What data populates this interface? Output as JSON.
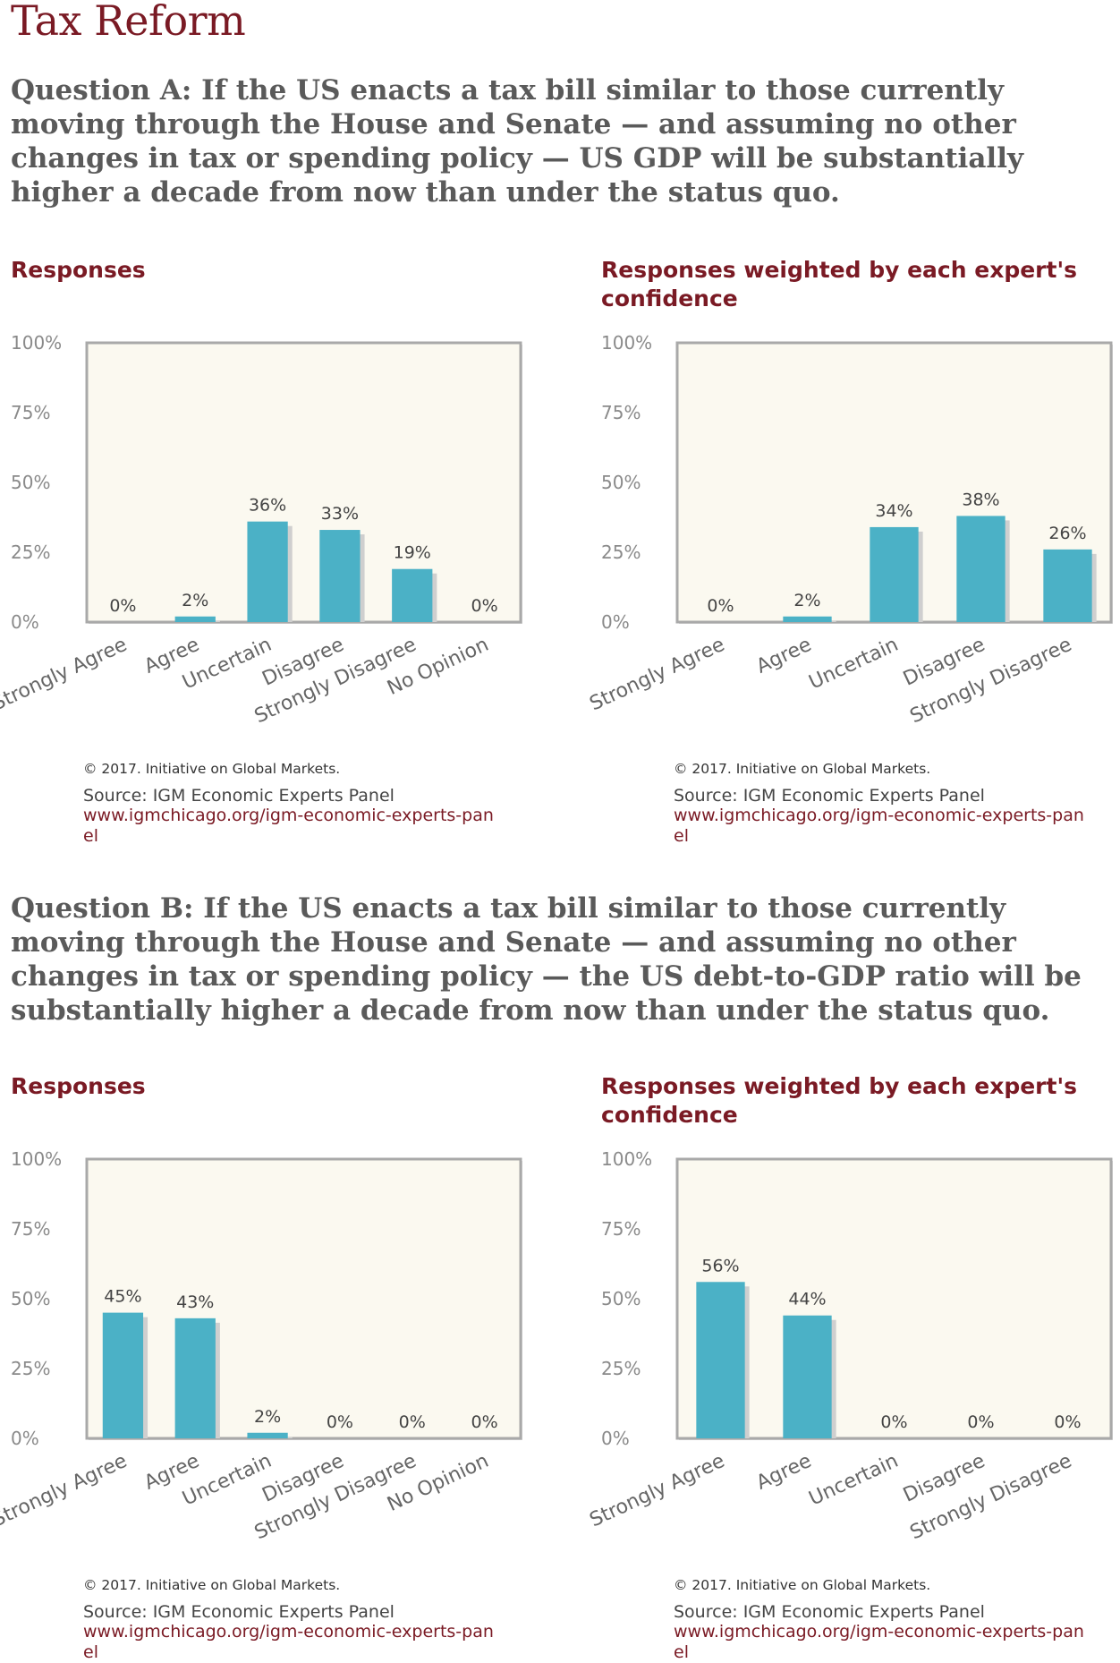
{
  "page": {
    "title": "Tax Reform"
  },
  "questions": [
    {
      "text": "Question A: If the US enacts a tax bill similar to those currently moving through the House and Senate — and assuming no other changes in tax or spending policy — US GDP will be substantially higher a decade from now than under the status quo."
    },
    {
      "text": "Question B: If the US enacts a tax bill similar to those currently moving through the House and Senate — and assuming no other changes in tax or spending policy — the US debt-to-GDP ratio will be substantially higher a decade from now than under the status quo."
    }
  ],
  "footer": {
    "copyright": "© 2017. Initiative on Global Markets.",
    "source": "Source: IGM Economic Experts Panel",
    "url": "www.igmchicago.org/igm-economic-experts-panel"
  },
  "colors": {
    "bar": "#4bb1c6",
    "plot_bg": "#fbf9f0",
    "frame": "#a9a9a9",
    "accent": "#7a1a24"
  },
  "chart_data": [
    {
      "type": "bar",
      "title": "Responses",
      "categories": [
        "Strongly Agree",
        "Agree",
        "Uncertain",
        "Disagree",
        "Strongly Disagree",
        "No Opinion"
      ],
      "values": [
        0,
        2,
        36,
        33,
        19,
        0
      ],
      "value_labels": [
        "0%",
        "2%",
        "36%",
        "33%",
        "19%",
        "0%"
      ],
      "yticks": [
        "0%",
        "25%",
        "50%",
        "75%",
        "100%"
      ],
      "ylim": [
        0,
        100
      ]
    },
    {
      "type": "bar",
      "title": "Responses weighted by each expert's confidence",
      "title_lines": [
        "Responses weighted by each expert's",
        "confidence"
      ],
      "categories": [
        "Strongly Agree",
        "Agree",
        "Uncertain",
        "Disagree",
        "Strongly Disagree"
      ],
      "values": [
        0,
        2,
        34,
        38,
        26
      ],
      "value_labels": [
        "0%",
        "2%",
        "34%",
        "38%",
        "26%"
      ],
      "yticks": [
        "0%",
        "25%",
        "50%",
        "75%",
        "100%"
      ],
      "ylim": [
        0,
        100
      ]
    },
    {
      "type": "bar",
      "title": "Responses",
      "categories": [
        "Strongly Agree",
        "Agree",
        "Uncertain",
        "Disagree",
        "Strongly Disagree",
        "No Opinion"
      ],
      "values": [
        45,
        43,
        2,
        0,
        0,
        0
      ],
      "value_labels": [
        "45%",
        "43%",
        "2%",
        "0%",
        "0%",
        "0%"
      ],
      "yticks": [
        "0%",
        "25%",
        "50%",
        "75%",
        "100%"
      ],
      "ylim": [
        0,
        100
      ]
    },
    {
      "type": "bar",
      "title": "Responses weighted by each expert's confidence",
      "title_lines": [
        "Responses weighted by each expert's",
        "confidence"
      ],
      "categories": [
        "Strongly Agree",
        "Agree",
        "Uncertain",
        "Disagree",
        "Strongly Disagree"
      ],
      "values": [
        56,
        44,
        0,
        0,
        0
      ],
      "value_labels": [
        "56%",
        "44%",
        "0%",
        "0%",
        "0%"
      ],
      "yticks": [
        "0%",
        "25%",
        "50%",
        "75%",
        "100%"
      ],
      "ylim": [
        0,
        100
      ]
    }
  ]
}
